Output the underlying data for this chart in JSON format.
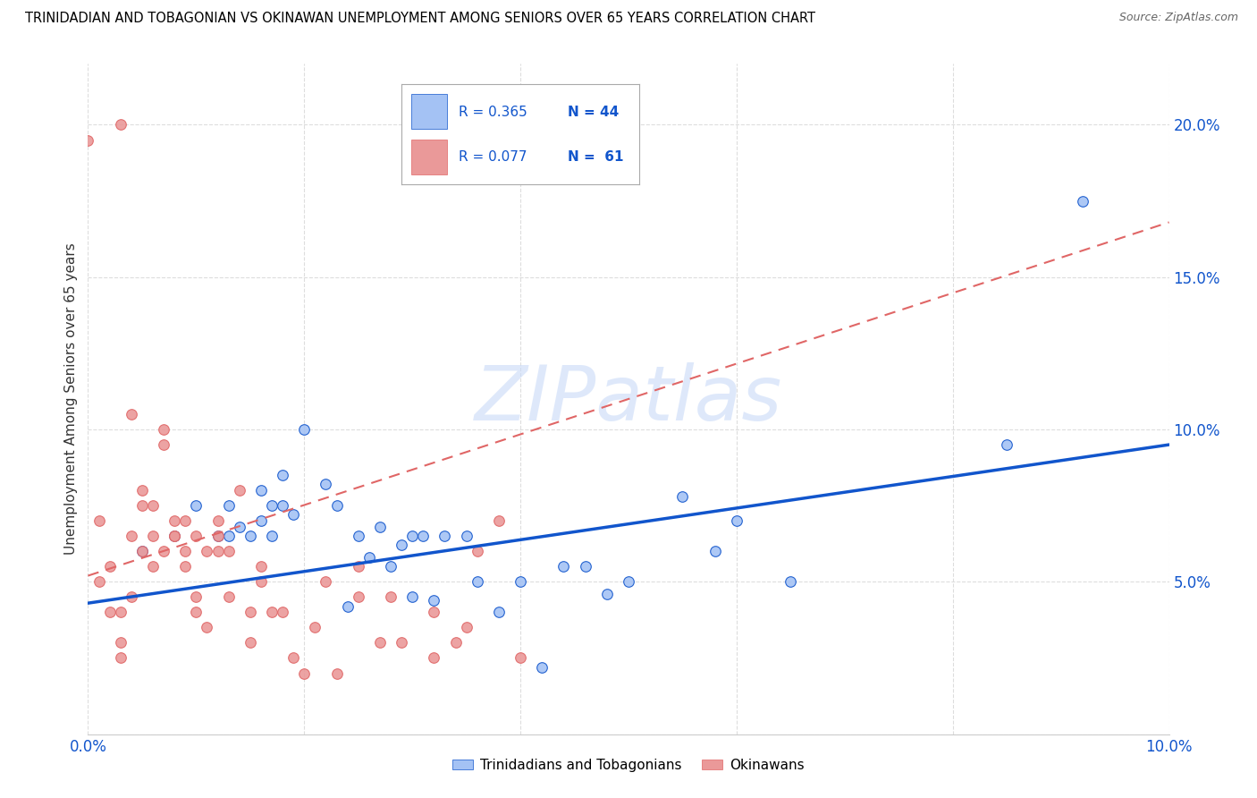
{
  "title": "TRINIDADIAN AND TOBAGONIAN VS OKINAWAN UNEMPLOYMENT AMONG SENIORS OVER 65 YEARS CORRELATION CHART",
  "source": "Source: ZipAtlas.com",
  "ylabel": "Unemployment Among Seniors over 65 years",
  "xlim": [
    0.0,
    0.1
  ],
  "ylim": [
    0.0,
    0.22
  ],
  "xticks": [
    0.0,
    0.02,
    0.04,
    0.06,
    0.08,
    0.1
  ],
  "yticks": [
    0.0,
    0.05,
    0.1,
    0.15,
    0.2
  ],
  "blue_color": "#a4c2f4",
  "pink_color": "#ea9999",
  "blue_line_color": "#1155cc",
  "pink_line_color": "#e06666",
  "tick_label_color": "#1155cc",
  "watermark_color": "#c9daf8",
  "legend_blue_r": "R = 0.365",
  "legend_blue_n": "N = 44",
  "legend_pink_r": "R = 0.077",
  "legend_pink_n": "N =  61",
  "legend_label_blue": "Trinidadians and Tobagonians",
  "legend_label_pink": "Okinawans",
  "blue_scatter_x": [
    0.005,
    0.008,
    0.01,
    0.012,
    0.013,
    0.013,
    0.014,
    0.015,
    0.016,
    0.016,
    0.017,
    0.017,
    0.018,
    0.018,
    0.019,
    0.02,
    0.022,
    0.023,
    0.024,
    0.025,
    0.026,
    0.027,
    0.028,
    0.029,
    0.03,
    0.03,
    0.031,
    0.032,
    0.033,
    0.035,
    0.036,
    0.038,
    0.04,
    0.042,
    0.044,
    0.046,
    0.048,
    0.05,
    0.055,
    0.058,
    0.06,
    0.065,
    0.085,
    0.092
  ],
  "blue_scatter_y": [
    0.06,
    0.065,
    0.075,
    0.065,
    0.065,
    0.075,
    0.068,
    0.065,
    0.07,
    0.08,
    0.065,
    0.075,
    0.075,
    0.085,
    0.072,
    0.1,
    0.082,
    0.075,
    0.042,
    0.065,
    0.058,
    0.068,
    0.055,
    0.062,
    0.065,
    0.045,
    0.065,
    0.044,
    0.065,
    0.065,
    0.05,
    0.04,
    0.05,
    0.022,
    0.055,
    0.055,
    0.046,
    0.05,
    0.078,
    0.06,
    0.07,
    0.05,
    0.095,
    0.175
  ],
  "pink_scatter_x": [
    0.0,
    0.001,
    0.001,
    0.002,
    0.002,
    0.003,
    0.003,
    0.003,
    0.004,
    0.004,
    0.004,
    0.005,
    0.005,
    0.005,
    0.006,
    0.006,
    0.006,
    0.007,
    0.007,
    0.007,
    0.008,
    0.008,
    0.008,
    0.009,
    0.009,
    0.009,
    0.01,
    0.01,
    0.01,
    0.011,
    0.011,
    0.012,
    0.012,
    0.012,
    0.013,
    0.013,
    0.014,
    0.015,
    0.015,
    0.016,
    0.016,
    0.017,
    0.018,
    0.019,
    0.02,
    0.021,
    0.022,
    0.023,
    0.025,
    0.025,
    0.027,
    0.028,
    0.029,
    0.032,
    0.032,
    0.034,
    0.035,
    0.036,
    0.038,
    0.04,
    0.003
  ],
  "pink_scatter_y": [
    0.195,
    0.05,
    0.07,
    0.04,
    0.055,
    0.03,
    0.04,
    0.025,
    0.045,
    0.065,
    0.105,
    0.06,
    0.075,
    0.08,
    0.065,
    0.055,
    0.075,
    0.095,
    0.1,
    0.06,
    0.065,
    0.07,
    0.065,
    0.055,
    0.07,
    0.06,
    0.065,
    0.045,
    0.04,
    0.035,
    0.06,
    0.06,
    0.065,
    0.07,
    0.06,
    0.045,
    0.08,
    0.03,
    0.04,
    0.05,
    0.055,
    0.04,
    0.04,
    0.025,
    0.02,
    0.035,
    0.05,
    0.02,
    0.045,
    0.055,
    0.03,
    0.045,
    0.03,
    0.04,
    0.025,
    0.03,
    0.035,
    0.06,
    0.07,
    0.025,
    0.2
  ],
  "blue_trend_x0": 0.0,
  "blue_trend_y0": 0.043,
  "blue_trend_x1": 0.1,
  "blue_trend_y1": 0.095,
  "pink_trend_x0": 0.0,
  "pink_trend_y0": 0.052,
  "pink_trend_x1": 0.1,
  "pink_trend_y1": 0.168,
  "background_color": "#ffffff",
  "grid_color": "#dddddd"
}
